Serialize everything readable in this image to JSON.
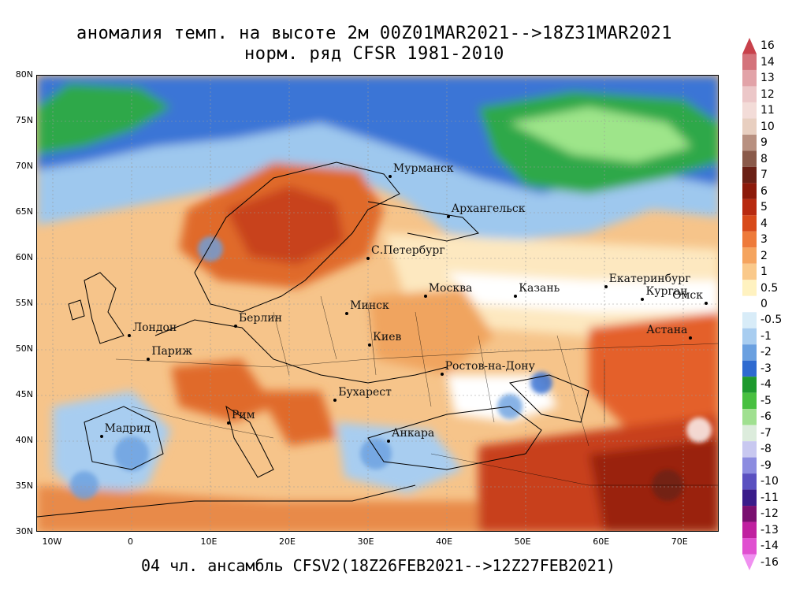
{
  "title": {
    "line1": "аномалия темп. на высоте 2м 00Z01MAR2021-->18Z31MAR2021",
    "line2": "норм. ряд CFSR 1981-2010"
  },
  "footer": "04 чл. ансамбль CFSV2(18Z26FEB2021-->12Z27FEB2021)",
  "map": {
    "lon_range": [
      -12,
      75
    ],
    "lat_range": [
      30,
      80
    ],
    "lat_ticks": [
      "80N",
      "75N",
      "70N",
      "65N",
      "60N",
      "55N",
      "50N",
      "45N",
      "40N",
      "35N",
      "30N"
    ],
    "lon_ticks": [
      "10W",
      "0",
      "10E",
      "20E",
      "30E",
      "40E",
      "50E",
      "60E",
      "70E"
    ],
    "cities": [
      {
        "name": "Мурманск",
        "lon": 33.1,
        "lat": 68.9
      },
      {
        "name": "Архангельск",
        "lon": 40.5,
        "lat": 64.5
      },
      {
        "name": "С.Петербург",
        "lon": 30.3,
        "lat": 59.9
      },
      {
        "name": "Москва",
        "lon": 37.6,
        "lat": 55.8
      },
      {
        "name": "Казань",
        "lon": 49.1,
        "lat": 55.8
      },
      {
        "name": "Екатеринбург",
        "lon": 60.6,
        "lat": 56.8
      },
      {
        "name": "Курган",
        "lon": 65.3,
        "lat": 55.4
      },
      {
        "name": "Омск",
        "lon": 73.4,
        "lat": 55.0
      },
      {
        "name": "Астана",
        "lon": 71.4,
        "lat": 51.2
      },
      {
        "name": "Минск",
        "lon": 27.6,
        "lat": 53.9
      },
      {
        "name": "Берлин",
        "lon": 13.4,
        "lat": 52.5
      },
      {
        "name": "Лондон",
        "lon": -0.1,
        "lat": 51.5
      },
      {
        "name": "Париж",
        "lon": 2.3,
        "lat": 48.9
      },
      {
        "name": "Киев",
        "lon": 30.5,
        "lat": 50.4
      },
      {
        "name": "Ростов-на-Дону",
        "lon": 39.7,
        "lat": 47.2
      },
      {
        "name": "Бухарест",
        "lon": 26.1,
        "lat": 44.4
      },
      {
        "name": "Мадрид",
        "lon": -3.7,
        "lat": 40.4
      },
      {
        "name": "Рим",
        "lon": 12.5,
        "lat": 41.9
      },
      {
        "name": "Анкара",
        "lon": 32.9,
        "lat": 39.9
      }
    ]
  },
  "colorbar": {
    "labels": [
      "16",
      "14",
      "13",
      "12",
      "11",
      "10",
      "9",
      "8",
      "7",
      "6",
      "5",
      "4",
      "3",
      "2",
      "1",
      "0.5",
      "0",
      "-0.5",
      "-1",
      "-2",
      "-3",
      "-4",
      "-5",
      "-6",
      "-7",
      "-8",
      "-9",
      "-10",
      "-11",
      "-12",
      "-13",
      "-14",
      "-16"
    ],
    "colors": [
      "#c8414b",
      "#d4737b",
      "#e2a3a8",
      "#ecc7c8",
      "#f3dcd8",
      "#e8cfc0",
      "#b89080",
      "#8a5a4a",
      "#6a2015",
      "#8c1a0a",
      "#b82a10",
      "#d84a1a",
      "#ee7a3a",
      "#f5a45e",
      "#fac98a",
      "#fff2c0",
      "#ffffff",
      "#d8ecf8",
      "#a8cdf0",
      "#6aa0e0",
      "#2e6ad0",
      "#1e9a2e",
      "#48c040",
      "#a0e090",
      "#dcecdc",
      "#c8c8f0",
      "#8c8ce0",
      "#5a50c0",
      "#3a1c8a",
      "#7a1070",
      "#c020a0",
      "#e050d0",
      "#f090f0"
    ]
  }
}
